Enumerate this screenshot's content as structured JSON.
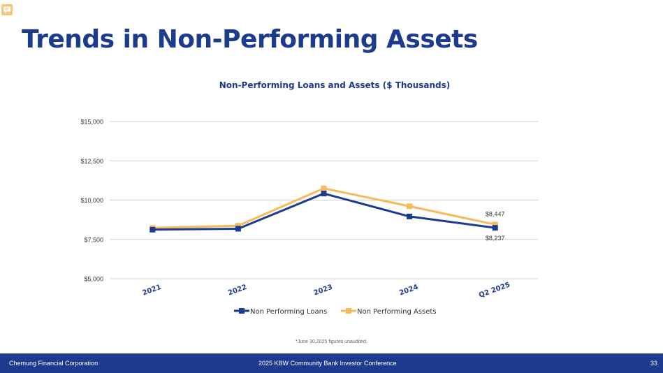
{
  "page": {
    "title": "Trends in Non-Performing Assets",
    "footnote": "*June 30,2025 figures unaudited.",
    "footer": {
      "company": "Chemung Financial Corporation",
      "event": "2025 KBW Community Bank Investor Conference",
      "page_number": "33"
    },
    "comment_icon": "comment-icon"
  },
  "chart_data": {
    "type": "line",
    "title": "Non-Performing Loans and Assets ($ Thousands)",
    "categories": [
      "2021",
      "2022",
      "2023",
      "2024",
      "Q2 2025"
    ],
    "yticks": [
      "$5,000",
      "$7,500",
      "$10,000",
      "$12,500",
      "$15,000"
    ],
    "ylim": [
      5000,
      15000
    ],
    "ytick_values": [
      5000,
      7500,
      10000,
      12500,
      15000
    ],
    "grid": true,
    "legend_position": "bottom",
    "series": [
      {
        "name": "Non Performing Loans",
        "color": "#1c3a8e",
        "values": [
          8120,
          8180,
          10420,
          8960,
          8237
        ]
      },
      {
        "name": "Non Performing Assets",
        "color": "#f5bb5a",
        "values": [
          8230,
          8370,
          10750,
          9610,
          8447
        ]
      }
    ],
    "data_labels": [
      {
        "series": 1,
        "index": 4,
        "text": "$8,447"
      },
      {
        "series": 0,
        "index": 4,
        "text": "$8,237"
      }
    ]
  }
}
